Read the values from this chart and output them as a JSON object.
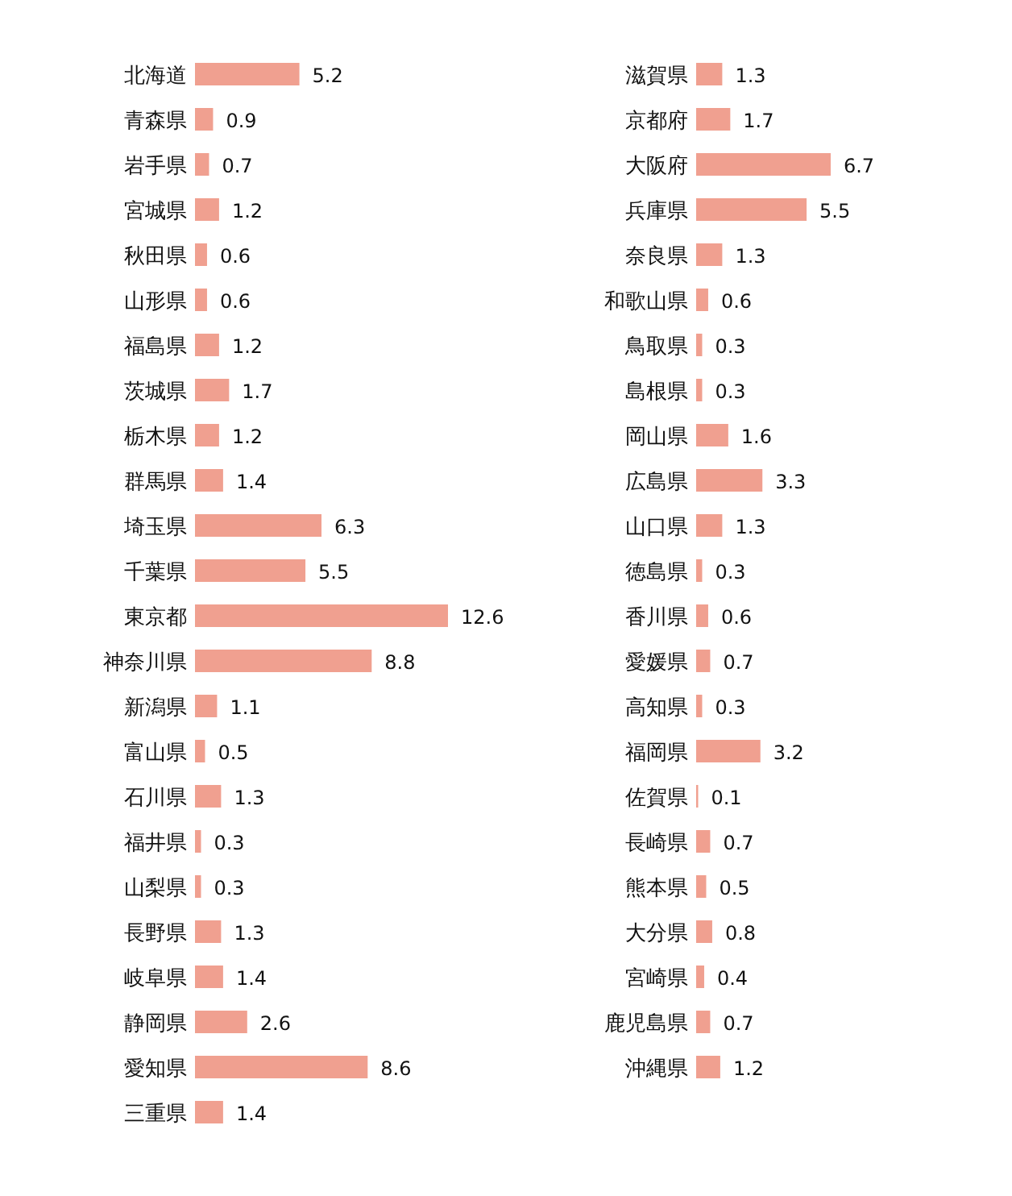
{
  "chart_data": [
    {
      "type": "bar",
      "orientation": "horizontal",
      "color": "#f0a090",
      "data_labels": true,
      "categories": [
        "北海道",
        "青森県",
        "岩手県",
        "宮城県",
        "秋田県",
        "山形県",
        "福島県",
        "茨城県",
        "栃木県",
        "群馬県",
        "埼玉県",
        "千葉県",
        "東京都",
        "神奈川県",
        "新潟県",
        "富山県",
        "石川県",
        "福井県",
        "山梨県",
        "長野県",
        "岐阜県",
        "静岡県",
        "愛知県",
        "三重県"
      ],
      "values": [
        5.2,
        0.9,
        0.7,
        1.2,
        0.6,
        0.6,
        1.2,
        1.7,
        1.2,
        1.4,
        6.3,
        5.5,
        12.6,
        8.8,
        1.1,
        0.5,
        1.3,
        0.3,
        0.3,
        1.3,
        1.4,
        2.6,
        8.6,
        1.4
      ]
    },
    {
      "type": "bar",
      "orientation": "horizontal",
      "color": "#f0a090",
      "data_labels": true,
      "categories": [
        "滋賀県",
        "京都府",
        "大阪府",
        "兵庫県",
        "奈良県",
        "和歌山県",
        "鳥取県",
        "島根県",
        "岡山県",
        "広島県",
        "山口県",
        "徳島県",
        "香川県",
        "愛媛県",
        "高知県",
        "福岡県",
        "佐賀県",
        "長崎県",
        "熊本県",
        "大分県",
        "宮崎県",
        "鹿児島県",
        "沖縄県"
      ],
      "values": [
        1.3,
        1.7,
        6.7,
        5.5,
        1.3,
        0.6,
        0.3,
        0.3,
        1.6,
        3.3,
        1.3,
        0.3,
        0.6,
        0.7,
        0.3,
        3.2,
        0.1,
        0.7,
        0.5,
        0.8,
        0.4,
        0.7,
        1.2
      ]
    }
  ]
}
